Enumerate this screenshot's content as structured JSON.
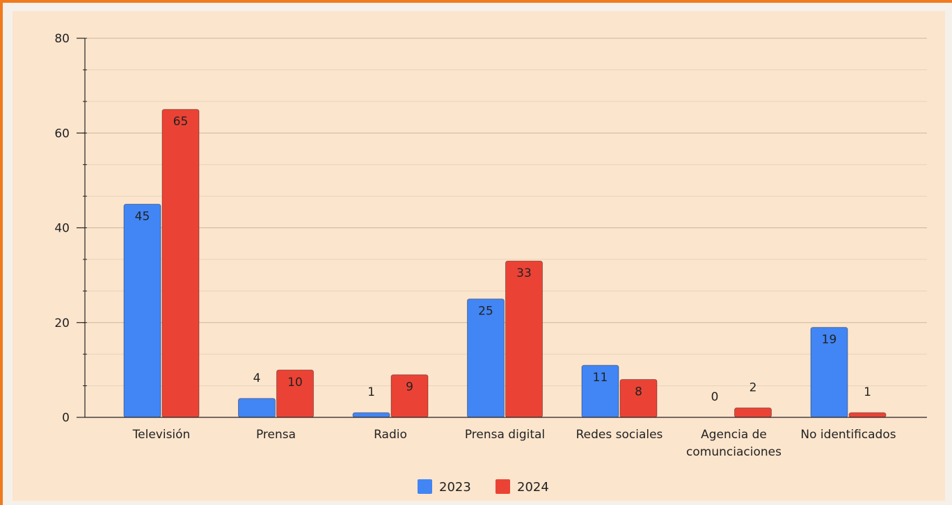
{
  "chart_data": {
    "type": "bar",
    "categories": [
      "Televisión",
      "Prensa",
      "Radio",
      "Prensa digital",
      "Redes sociales",
      [
        "Agencia de",
        "comunciaciones"
      ],
      "No identificados"
    ],
    "series": [
      {
        "name": "2023",
        "values": [
          45,
          4,
          1,
          25,
          11,
          0,
          19
        ],
        "color": "#4285f4"
      },
      {
        "name": "2024",
        "values": [
          65,
          10,
          9,
          33,
          8,
          2,
          1
        ],
        "color": "#ea4335"
      }
    ],
    "ylim": [
      0,
      80
    ],
    "yticks": [
      0,
      20,
      40,
      60,
      80
    ],
    "grid": true,
    "legend": "bottom",
    "colors": {
      "background": "#fce5cd",
      "grid": "#d9c2a8",
      "border": "#f07a1e"
    }
  }
}
